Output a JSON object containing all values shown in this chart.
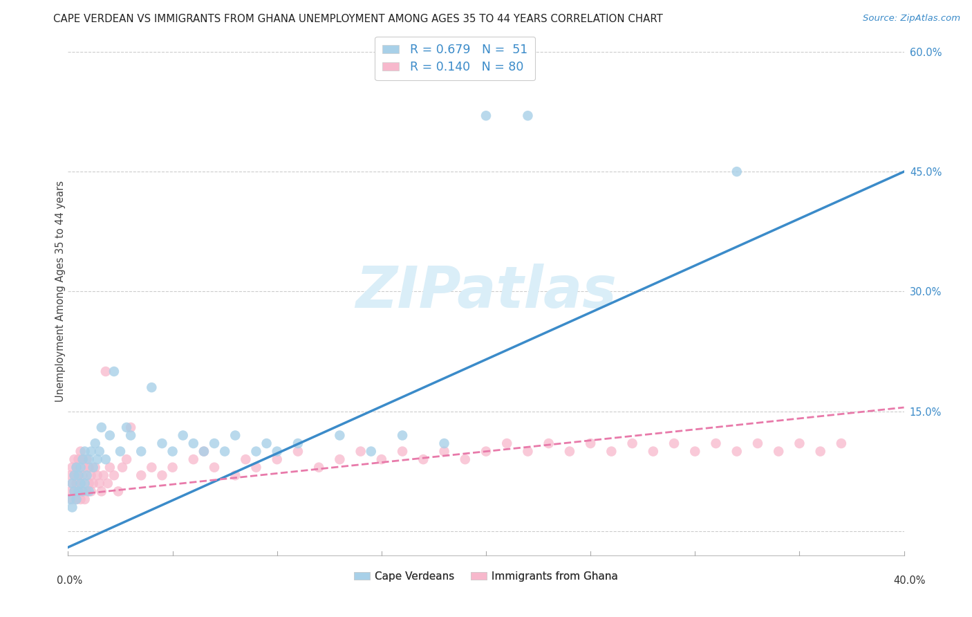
{
  "title": "CAPE VERDEAN VS IMMIGRANTS FROM GHANA UNEMPLOYMENT AMONG AGES 35 TO 44 YEARS CORRELATION CHART",
  "source": "Source: ZipAtlas.com",
  "ylabel": "Unemployment Among Ages 35 to 44 years",
  "xlim": [
    0.0,
    0.4
  ],
  "ylim": [
    -0.03,
    0.63
  ],
  "ytick_vals": [
    0.0,
    0.15,
    0.3,
    0.45,
    0.6
  ],
  "ytick_labels": [
    "",
    "15.0%",
    "30.0%",
    "45.0%",
    "60.0%"
  ],
  "cape_color": "#a8d0e8",
  "ghana_color": "#f7b8cc",
  "blue_line": "#3b8bc9",
  "pink_line": "#e87aaa",
  "grid_color": "#cccccc",
  "bg_color": "#ffffff",
  "watermark_color": "#daeef8",
  "legend_value_color": "#3b8bc9",
  "label_cape": "Cape Verdeans",
  "label_ghana": "Immigrants from Ghana",
  "blue_line_x0": 0.0,
  "blue_line_y0": -0.02,
  "blue_line_x1": 0.4,
  "blue_line_y1": 0.45,
  "pink_line_x0": 0.0,
  "pink_line_y0": 0.045,
  "pink_line_x1": 0.4,
  "pink_line_y1": 0.155,
  "cape_scatter_x": [
    0.001,
    0.002,
    0.002,
    0.003,
    0.003,
    0.004,
    0.004,
    0.005,
    0.005,
    0.006,
    0.006,
    0.007,
    0.007,
    0.008,
    0.008,
    0.009,
    0.01,
    0.01,
    0.011,
    0.012,
    0.013,
    0.014,
    0.015,
    0.016,
    0.018,
    0.02,
    0.022,
    0.025,
    0.028,
    0.03,
    0.035,
    0.04,
    0.045,
    0.05,
    0.055,
    0.06,
    0.065,
    0.07,
    0.075,
    0.08,
    0.09,
    0.095,
    0.1,
    0.11,
    0.13,
    0.145,
    0.16,
    0.18,
    0.2,
    0.22,
    0.32
  ],
  "cape_scatter_y": [
    0.04,
    0.03,
    0.06,
    0.05,
    0.07,
    0.04,
    0.08,
    0.05,
    0.07,
    0.06,
    0.08,
    0.05,
    0.09,
    0.06,
    0.1,
    0.07,
    0.05,
    0.09,
    0.1,
    0.08,
    0.11,
    0.09,
    0.1,
    0.13,
    0.09,
    0.12,
    0.2,
    0.1,
    0.13,
    0.12,
    0.1,
    0.18,
    0.11,
    0.1,
    0.12,
    0.11,
    0.1,
    0.11,
    0.1,
    0.12,
    0.1,
    0.11,
    0.1,
    0.11,
    0.12,
    0.1,
    0.12,
    0.11,
    0.52,
    0.52,
    0.45
  ],
  "ghana_scatter_x": [
    0.001,
    0.001,
    0.002,
    0.002,
    0.002,
    0.003,
    0.003,
    0.003,
    0.004,
    0.004,
    0.004,
    0.005,
    0.005,
    0.005,
    0.006,
    0.006,
    0.006,
    0.007,
    0.007,
    0.007,
    0.008,
    0.008,
    0.009,
    0.009,
    0.01,
    0.01,
    0.011,
    0.011,
    0.012,
    0.013,
    0.014,
    0.015,
    0.016,
    0.017,
    0.018,
    0.019,
    0.02,
    0.022,
    0.024,
    0.026,
    0.028,
    0.03,
    0.035,
    0.04,
    0.045,
    0.05,
    0.06,
    0.065,
    0.07,
    0.08,
    0.085,
    0.09,
    0.1,
    0.11,
    0.12,
    0.13,
    0.14,
    0.15,
    0.16,
    0.17,
    0.18,
    0.19,
    0.2,
    0.21,
    0.22,
    0.23,
    0.24,
    0.25,
    0.26,
    0.27,
    0.28,
    0.29,
    0.3,
    0.31,
    0.32,
    0.33,
    0.34,
    0.35,
    0.36,
    0.37
  ],
  "ghana_scatter_y": [
    0.05,
    0.07,
    0.04,
    0.06,
    0.08,
    0.05,
    0.07,
    0.09,
    0.04,
    0.06,
    0.08,
    0.05,
    0.07,
    0.09,
    0.04,
    0.06,
    0.1,
    0.05,
    0.07,
    0.09,
    0.04,
    0.08,
    0.05,
    0.09,
    0.06,
    0.08,
    0.05,
    0.07,
    0.06,
    0.08,
    0.07,
    0.06,
    0.05,
    0.07,
    0.2,
    0.06,
    0.08,
    0.07,
    0.05,
    0.08,
    0.09,
    0.13,
    0.07,
    0.08,
    0.07,
    0.08,
    0.09,
    0.1,
    0.08,
    0.07,
    0.09,
    0.08,
    0.09,
    0.1,
    0.08,
    0.09,
    0.1,
    0.09,
    0.1,
    0.09,
    0.1,
    0.09,
    0.1,
    0.11,
    0.1,
    0.11,
    0.1,
    0.11,
    0.1,
    0.11,
    0.1,
    0.11,
    0.1,
    0.11,
    0.1,
    0.11,
    0.1,
    0.11,
    0.1,
    0.11
  ]
}
